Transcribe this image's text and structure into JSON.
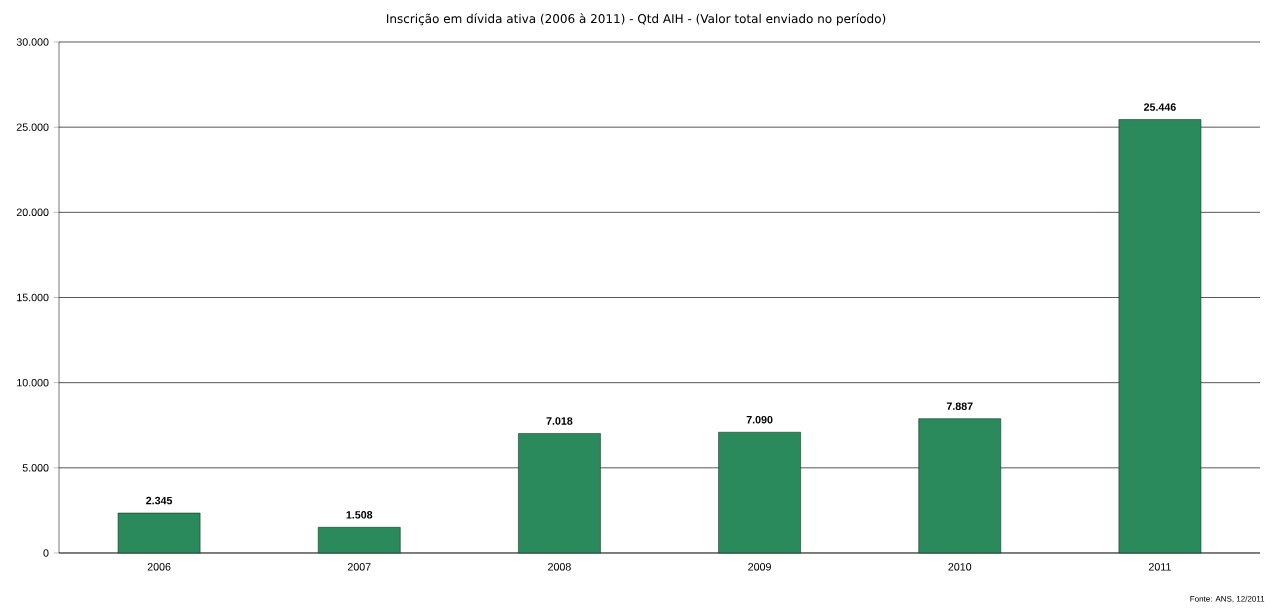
{
  "chart_data": {
    "type": "bar",
    "title": "Inscrição em dívida ativa (2006 à 2011) - Qtd AIH - (Valor total enviado no período)",
    "categories": [
      "2006",
      "2007",
      "2008",
      "2009",
      "2010",
      "2011"
    ],
    "values": [
      2345,
      1508,
      7018,
      7090,
      7887,
      25446
    ],
    "value_labels": [
      "2.345",
      "1.508",
      "7.018",
      "7.090",
      "7.887",
      "25.446"
    ],
    "color": "#2a8a5c",
    "ylim": [
      0,
      30000
    ],
    "yticks": [
      0,
      {
        "value": 5000,
        "label": "5.000"
      },
      {
        "value": 10000,
        "label": "10.000"
      },
      {
        "value": 15000,
        "label": "15.000"
      },
      {
        "value": 20000,
        "label": "20.000"
      },
      {
        "value": 25000,
        "label": "25.000"
      },
      {
        "value": 30000,
        "label": "30.000"
      }
    ],
    "grid": "y",
    "annotations": [
      "Fonte: ANS, 12/2011"
    ]
  }
}
